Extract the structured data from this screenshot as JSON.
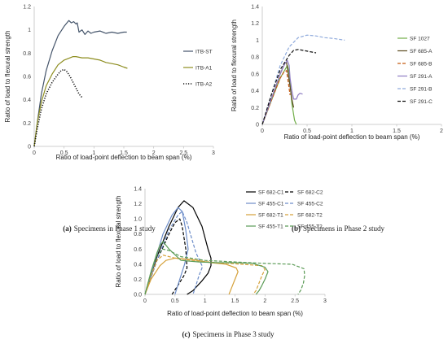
{
  "chart_data": [
    {
      "type": "line",
      "caption": {
        "label": "(a)",
        "text": "Specimens in Phase 1 study"
      },
      "xlabel": "Ratio of load-point deflection to beam span (%)",
      "ylabel": "Ratio of load to flexural strength",
      "xlim": [
        0,
        3
      ],
      "ylim": [
        0,
        1.2
      ],
      "xticks": [
        "0",
        "0.5",
        "1",
        "1.5",
        "2",
        "2.5",
        "3"
      ],
      "yticks": [
        "0",
        "0.2",
        "0.4",
        "0.6",
        "0.8",
        "1",
        "1.2"
      ],
      "legend_position": "right",
      "series": [
        {
          "name": "ITB-ST",
          "color": "#44546a",
          "dash": "solid",
          "x": [
            0,
            0.05,
            0.12,
            0.2,
            0.3,
            0.4,
            0.5,
            0.58,
            0.62,
            0.66,
            0.7,
            0.72,
            0.75,
            0.8,
            0.85,
            0.9,
            0.95,
            1.0,
            1.1,
            1.2,
            1.3,
            1.4,
            1.5,
            1.55
          ],
          "y": [
            0,
            0.2,
            0.45,
            0.65,
            0.82,
            0.95,
            1.03,
            1.08,
            1.06,
            1.07,
            1.05,
            1.06,
            0.98,
            1.0,
            0.96,
            0.99,
            0.97,
            0.98,
            0.99,
            0.97,
            0.98,
            0.97,
            0.98,
            0.98
          ]
        },
        {
          "name": "ITB-A1",
          "color": "#8d8d1f",
          "dash": "solid",
          "x": [
            0,
            0.05,
            0.12,
            0.2,
            0.3,
            0.4,
            0.5,
            0.6,
            0.65,
            0.7,
            0.8,
            0.9,
            1.0,
            1.1,
            1.2,
            1.3,
            1.4,
            1.5,
            1.56
          ],
          "y": [
            0,
            0.2,
            0.38,
            0.52,
            0.62,
            0.7,
            0.74,
            0.76,
            0.77,
            0.77,
            0.76,
            0.76,
            0.75,
            0.74,
            0.72,
            0.71,
            0.7,
            0.68,
            0.67
          ]
        },
        {
          "name": "ITB-A2",
          "color": "#111111",
          "dash": "dotted",
          "x": [
            0,
            0.05,
            0.12,
            0.2,
            0.3,
            0.4,
            0.45,
            0.5,
            0.55,
            0.6,
            0.65,
            0.7,
            0.75,
            0.8
          ],
          "y": [
            0,
            0.15,
            0.32,
            0.45,
            0.55,
            0.62,
            0.65,
            0.66,
            0.64,
            0.6,
            0.55,
            0.5,
            0.45,
            0.42
          ]
        }
      ]
    },
    {
      "type": "line",
      "caption": {
        "label": "(b)",
        "text": "Specimens in Phase 2 study"
      },
      "xlabel": "Ratio of load-point deflection to beam span (%)",
      "ylabel": "Ratio of load to flexural strength",
      "xlim": [
        0,
        2
      ],
      "ylim": [
        0,
        1.4
      ],
      "xticks": [
        "0",
        "0.5",
        "1",
        "1.5",
        "2"
      ],
      "yticks": [
        "0",
        "0.2",
        "0.4",
        "0.6",
        "0.8",
        "1",
        "1.2",
        "1.4"
      ],
      "legend_position": "right",
      "series": [
        {
          "name": "SF 1027",
          "color": "#70ad47",
          "dash": "solid",
          "x": [
            0,
            0.1,
            0.2,
            0.28,
            0.3,
            0.33,
            0.36,
            0.38
          ],
          "y": [
            0,
            0.28,
            0.55,
            0.7,
            0.62,
            0.25,
            0.05,
            0.0
          ]
        },
        {
          "name": "SF 685-A",
          "color": "#5b4a1f",
          "dash": "solid",
          "x": [
            0,
            0.1,
            0.2,
            0.25,
            0.27,
            0.29,
            0.31,
            0.33,
            0.35
          ],
          "y": [
            0,
            0.3,
            0.6,
            0.72,
            0.74,
            0.6,
            0.45,
            0.3,
            0.2
          ]
        },
        {
          "name": "SF 685-B",
          "color": "#c55a11",
          "dash": "dashed",
          "x": [
            0,
            0.1,
            0.2,
            0.24,
            0.27,
            0.29,
            0.31
          ],
          "y": [
            0,
            0.28,
            0.55,
            0.62,
            0.64,
            0.5,
            0.35
          ]
        },
        {
          "name": "SF 291-A",
          "color": "#8e7cc3",
          "dash": "solid",
          "x": [
            0,
            0.1,
            0.2,
            0.25,
            0.28,
            0.3,
            0.31,
            0.33,
            0.35,
            0.38,
            0.4,
            0.42,
            0.45
          ],
          "y": [
            0,
            0.3,
            0.6,
            0.72,
            0.76,
            0.7,
            0.55,
            0.4,
            0.3,
            0.3,
            0.35,
            0.37,
            0.36
          ]
        },
        {
          "name": "SF 291-B",
          "color": "#8faadc",
          "dash": "dashed",
          "x": [
            0,
            0.1,
            0.2,
            0.3,
            0.4,
            0.5,
            0.6,
            0.7,
            0.8,
            0.92
          ],
          "y": [
            0,
            0.35,
            0.7,
            0.92,
            1.03,
            1.06,
            1.05,
            1.03,
            1.02,
            1.0
          ]
        },
        {
          "name": "SF 291-C",
          "color": "#111111",
          "dash": "dashed",
          "x": [
            0,
            0.1,
            0.2,
            0.3,
            0.35,
            0.4,
            0.5,
            0.6
          ],
          "y": [
            0,
            0.35,
            0.65,
            0.82,
            0.88,
            0.89,
            0.87,
            0.85
          ]
        }
      ]
    },
    {
      "type": "line",
      "caption": {
        "label": "(c)",
        "text": "Specimens in Phase 3 study"
      },
      "xlabel": "Ratio of load-point deflection to beam span (%)",
      "ylabel": "Ratio of load to flexural strength",
      "xlim": [
        0,
        3
      ],
      "ylim": [
        0,
        1.4
      ],
      "xticks": [
        "0",
        "0.5",
        "1",
        "1.5",
        "2",
        "2.5",
        "3"
      ],
      "yticks": [
        "0.0",
        "0.2",
        "0.4",
        "0.6",
        "0.8",
        "1.0",
        "1.2",
        "1.4"
      ],
      "legend_position": "top-right",
      "series": [
        {
          "name": "SF 682-C1",
          "color": "#000000",
          "dash": "solid",
          "x": [
            0,
            0.2,
            0.4,
            0.55,
            0.65,
            0.8,
            0.95,
            1.05,
            1.1,
            1.1,
            1.05,
            0.95,
            0.8,
            0.7
          ],
          "y": [
            0,
            0.5,
            0.9,
            1.15,
            1.24,
            1.15,
            0.9,
            0.6,
            0.48,
            0.38,
            0.28,
            0.18,
            0.05,
            0.0
          ]
        },
        {
          "name": "SF 682-C2",
          "color": "#000000",
          "dash": "dashed",
          "x": [
            0,
            0.2,
            0.4,
            0.5,
            0.58,
            0.62,
            0.68,
            0.7,
            0.65,
            0.55,
            0.45
          ],
          "y": [
            0,
            0.45,
            0.8,
            0.95,
            1.0,
            0.9,
            0.6,
            0.35,
            0.25,
            0.12,
            0.0
          ]
        },
        {
          "name": "SF 455-C1",
          "color": "#6d8dc9",
          "dash": "solid",
          "x": [
            0,
            0.15,
            0.3,
            0.45,
            0.55,
            0.62,
            0.68,
            0.72,
            0.66,
            0.58,
            0.5
          ],
          "y": [
            0,
            0.4,
            0.8,
            1.05,
            1.15,
            1.1,
            0.85,
            0.6,
            0.4,
            0.2,
            0.0
          ]
        },
        {
          "name": "SF 455-C2",
          "color": "#6d8dc9",
          "dash": "dashed",
          "x": [
            0,
            0.2,
            0.4,
            0.55,
            0.62,
            0.7,
            0.85,
            0.95,
            0.95,
            0.9,
            0.85,
            0.8
          ],
          "y": [
            0,
            0.45,
            0.85,
            1.05,
            1.1,
            0.95,
            0.55,
            0.38,
            0.35,
            0.25,
            0.12,
            0.0
          ]
        },
        {
          "name": "SF 682-T1",
          "color": "#d5a13a",
          "dash": "solid",
          "x": [
            0,
            0.1,
            0.25,
            0.35,
            0.5,
            0.8,
            1.1,
            1.35,
            1.52,
            1.55,
            1.5,
            1.45,
            1.4
          ],
          "y": [
            0,
            0.2,
            0.38,
            0.45,
            0.48,
            0.46,
            0.42,
            0.4,
            0.35,
            0.3,
            0.2,
            0.1,
            0.0
          ]
        },
        {
          "name": "SF 682-T2",
          "color": "#d5a13a",
          "dash": "dashed",
          "x": [
            0,
            0.1,
            0.2,
            0.3,
            0.5,
            0.8,
            1.2,
            1.6,
            1.95,
            2.0,
            1.95,
            1.9,
            1.85,
            1.8
          ],
          "y": [
            0,
            0.25,
            0.45,
            0.52,
            0.48,
            0.45,
            0.42,
            0.4,
            0.38,
            0.33,
            0.25,
            0.15,
            0.05,
            0.0
          ]
        },
        {
          "name": "SF 455-T1",
          "color": "#5b9b56",
          "dash": "solid",
          "x": [
            0,
            0.1,
            0.2,
            0.25,
            0.3,
            0.4,
            0.6,
            0.9,
            1.2,
            1.5,
            1.8,
            2.0,
            2.05,
            2.0,
            1.95,
            1.9,
            1.85
          ],
          "y": [
            0,
            0.3,
            0.55,
            0.65,
            0.7,
            0.6,
            0.45,
            0.43,
            0.42,
            0.42,
            0.41,
            0.36,
            0.3,
            0.2,
            0.12,
            0.05,
            0.0
          ]
        },
        {
          "name": "SF 455-T2",
          "color": "#5b9b56",
          "dash": "dashed",
          "x": [
            0,
            0.1,
            0.2,
            0.3,
            0.4,
            0.6,
            1.0,
            1.5,
            2.0,
            2.45,
            2.65,
            2.66,
            2.64,
            2.6,
            2.55
          ],
          "y": [
            0,
            0.3,
            0.52,
            0.6,
            0.58,
            0.5,
            0.45,
            0.43,
            0.41,
            0.4,
            0.34,
            0.25,
            0.15,
            0.06,
            0.0
          ]
        }
      ]
    }
  ]
}
